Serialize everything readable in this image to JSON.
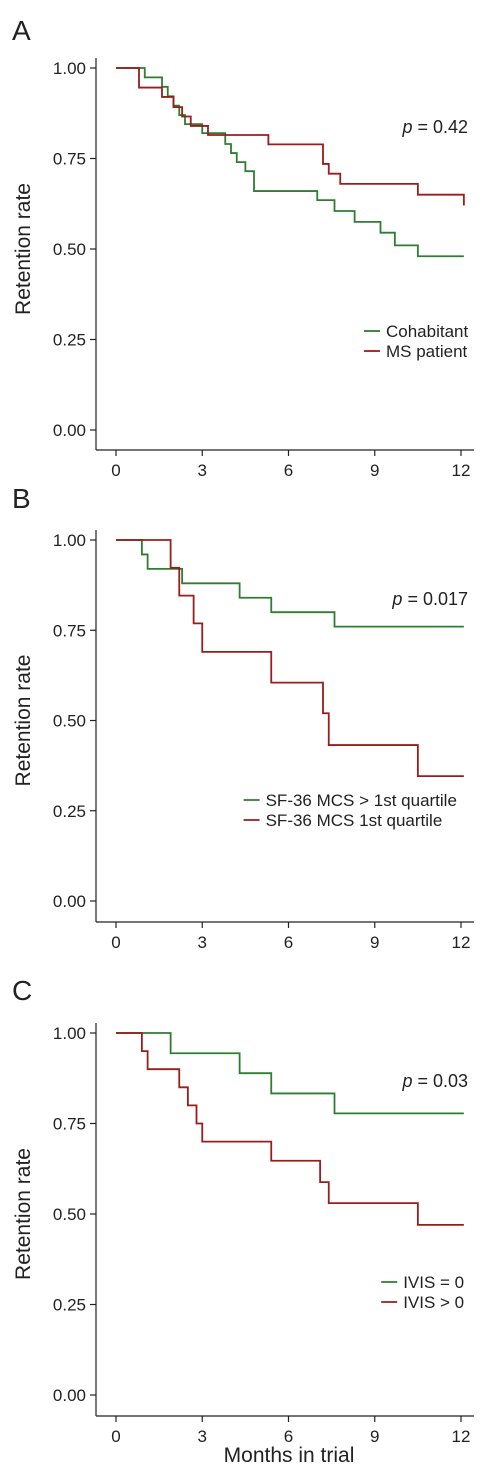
{
  "colors": {
    "green": "#2e7d32",
    "red": "#9b1c1c",
    "axis": "#222222"
  },
  "xlabel": "Months in trial",
  "chart_data": [
    {
      "type": "line",
      "step": true,
      "panel_label": "A",
      "ylabel": "Retention rate",
      "xlim": [
        0,
        12
      ],
      "ylim": [
        0,
        1
      ],
      "xticks": [
        0,
        3,
        6,
        9,
        12
      ],
      "yticks": [
        0.0,
        0.25,
        0.5,
        0.75,
        1.0
      ],
      "xtick_labels": [
        "0",
        "3",
        "6",
        "9",
        "12"
      ],
      "ytick_labels": [
        "0.00",
        "0.25",
        "0.50",
        "0.75",
        "1.00"
      ],
      "grid": false,
      "annotation": {
        "p_symbol": "p",
        "p_text": " = 0.42"
      },
      "legend": {
        "position": "bottom-right"
      },
      "series": [
        {
          "name": "Cohabitant",
          "color": "#2e7d32",
          "x": [
            0,
            1.0,
            1.6,
            1.8,
            2.0,
            2.2,
            2.4,
            3.0,
            3.8,
            4.0,
            4.2,
            4.5,
            4.8,
            6.0,
            7.0,
            7.6,
            8.3,
            9.2,
            9.7,
            10.5,
            12.1
          ],
          "y": [
            1.0,
            0.974,
            0.948,
            0.922,
            0.896,
            0.87,
            0.845,
            0.82,
            0.79,
            0.765,
            0.74,
            0.715,
            0.66,
            0.66,
            0.635,
            0.605,
            0.575,
            0.545,
            0.51,
            0.48,
            0.48
          ]
        },
        {
          "name": "MS patient",
          "color": "#9b1c1c",
          "x": [
            0,
            0.8,
            1.6,
            2.0,
            2.3,
            2.6,
            3.2,
            4.4,
            5.3,
            7.2,
            7.4,
            7.8,
            10.5,
            12.1
          ],
          "y": [
            1.0,
            0.946,
            0.92,
            0.892,
            0.866,
            0.84,
            0.815,
            0.815,
            0.789,
            0.735,
            0.708,
            0.68,
            0.65,
            0.62
          ]
        }
      ]
    },
    {
      "type": "line",
      "step": true,
      "panel_label": "B",
      "ylabel": "Retention rate",
      "xlim": [
        0,
        12
      ],
      "ylim": [
        0,
        1
      ],
      "xticks": [
        0,
        3,
        6,
        9,
        12
      ],
      "yticks": [
        0.0,
        0.25,
        0.5,
        0.75,
        1.0
      ],
      "xtick_labels": [
        "0",
        "3",
        "6",
        "9",
        "12"
      ],
      "ytick_labels": [
        "0.00",
        "0.25",
        "0.50",
        "0.75",
        "1.00"
      ],
      "grid": false,
      "annotation": {
        "p_symbol": "p",
        "p_text": " = 0.017"
      },
      "legend": {
        "position": "bottom-right"
      },
      "series": [
        {
          "name": "SF-36 MCS > 1st quartile",
          "color": "#2e7d32",
          "x": [
            0,
            0.9,
            1.1,
            2.3,
            4.3,
            5.4,
            7.6,
            12.1
          ],
          "y": [
            1.0,
            0.96,
            0.92,
            0.88,
            0.84,
            0.8,
            0.76,
            0.76
          ],
          "steps_x": [
            0.9,
            1.1,
            2.3,
            4.3,
            5.4,
            7.6
          ]
        },
        {
          "name": "SF-36 MCS 1st quartile",
          "color": "#9b1c1c",
          "x": [
            0,
            1.9,
            2.2,
            2.7,
            3.0,
            5.4,
            7.2,
            7.4,
            10.5,
            12.1
          ],
          "y": [
            1.0,
            0.923,
            0.846,
            0.769,
            0.69,
            0.605,
            0.52,
            0.432,
            0.346,
            0.346
          ],
          "steps_x": [
            1.9,
            2.2,
            2.7,
            3.0,
            5.4,
            7.2,
            7.4,
            10.5
          ]
        }
      ]
    },
    {
      "type": "line",
      "step": true,
      "panel_label": "C",
      "ylabel": "Retention rate",
      "xlim": [
        0,
        12
      ],
      "ylim": [
        0,
        1
      ],
      "xticks": [
        0,
        3,
        6,
        9,
        12
      ],
      "yticks": [
        0.0,
        0.25,
        0.5,
        0.75,
        1.0
      ],
      "xtick_labels": [
        "0",
        "3",
        "6",
        "9",
        "12"
      ],
      "ytick_labels": [
        "0.00",
        "0.25",
        "0.50",
        "0.75",
        "1.00"
      ],
      "grid": false,
      "annotation": {
        "p_symbol": "p",
        "p_text": " = 0.03"
      },
      "legend": {
        "position": "bottom-right"
      },
      "series": [
        {
          "name": "IVIS = 0",
          "color": "#2e7d32",
          "x": [
            0,
            1.9,
            4.3,
            5.4,
            7.6,
            12.1
          ],
          "y": [
            1.0,
            0.944,
            0.889,
            0.833,
            0.778,
            0.778
          ]
        },
        {
          "name": "IVIS > 0",
          "color": "#9b1c1c",
          "x": [
            0,
            0.9,
            1.1,
            2.2,
            2.5,
            2.8,
            3.0,
            5.4,
            7.1,
            7.4,
            10.5,
            12.1
          ],
          "y": [
            1.0,
            0.95,
            0.9,
            0.85,
            0.8,
            0.75,
            0.7,
            0.647,
            0.588,
            0.53,
            0.47,
            0.47
          ]
        }
      ]
    }
  ]
}
